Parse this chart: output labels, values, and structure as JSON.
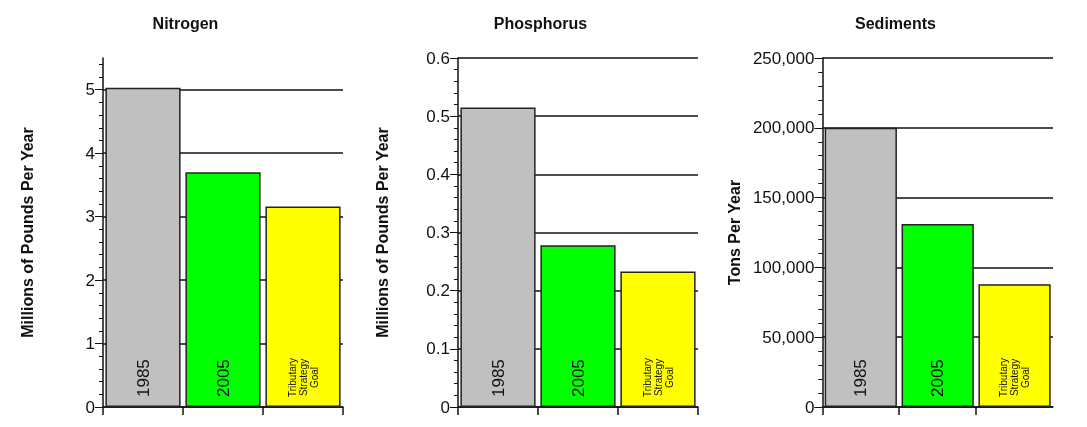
{
  "chart_data": [
    {
      "type": "bar",
      "title": "Nitrogen",
      "ylabel": "Millions of Pounds Per Year",
      "categories": [
        "1985",
        "2005",
        "Tributary Strategy Goal"
      ],
      "values": [
        5.03,
        3.7,
        3.16
      ],
      "colors": [
        "#c0c0c0",
        "#00ff00",
        "#ffff00"
      ],
      "ylim": [
        0,
        5.5
      ],
      "yticks": [
        0,
        1,
        2,
        3,
        4,
        5
      ],
      "grid": "y"
    },
    {
      "type": "bar",
      "title": "Phosphorus",
      "ylabel": "Millions of Pounds Per Year",
      "categories": [
        "1985",
        "2005",
        "Tributary Strategy Goal"
      ],
      "values": [
        0.515,
        0.278,
        0.233
      ],
      "colors": [
        "#c0c0c0",
        "#00ff00",
        "#ffff00"
      ],
      "ylim": [
        0,
        0.6
      ],
      "yticks": [
        0,
        0.1,
        0.2,
        0.3,
        0.4,
        0.5,
        0.6
      ],
      "grid": "y"
    },
    {
      "type": "bar",
      "title": "Sediments",
      "ylabel": "Tons Per Year",
      "categories": [
        "1985",
        "2005",
        "Tributary Strategy Goal"
      ],
      "values": [
        200000,
        131000,
        88000
      ],
      "colors": [
        "#c0c0c0",
        "#00ff00",
        "#ffff00"
      ],
      "ylim": [
        0,
        250000
      ],
      "yticks": [
        0,
        {
          "value": 50000,
          "label": "50,000"
        },
        {
          "value": 100000,
          "label": "100,000"
        },
        {
          "value": 150000,
          "label": "150,000"
        },
        {
          "value": 200000,
          "label": "200,000"
        },
        {
          "value": 250000,
          "label": "250,000"
        }
      ],
      "grid": "y"
    }
  ]
}
